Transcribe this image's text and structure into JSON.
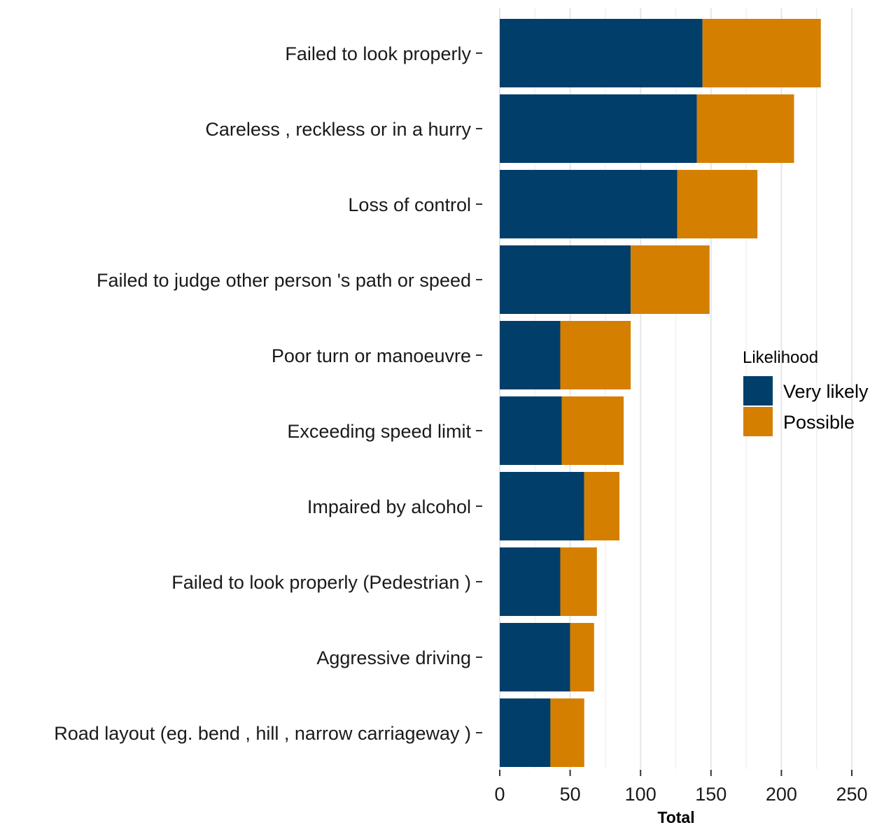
{
  "chart_data": {
    "type": "bar",
    "orientation": "horizontal",
    "stacked": true,
    "categories": [
      "Failed to look properly",
      "Careless , reckless or in a hurry",
      "Loss of control",
      "Failed to judge other person 's path or speed",
      "Poor turn or manoeuvre",
      "Exceeding speed limit",
      "Impaired by alcohol",
      "Failed to look properly (Pedestrian )",
      "Aggressive driving",
      "Road layout (eg. bend , hill , narrow carriageway )"
    ],
    "series": [
      {
        "name": "Very likely",
        "color": "#023e6a",
        "values": [
          144,
          140,
          126,
          93,
          43,
          44,
          60,
          43,
          50,
          36
        ]
      },
      {
        "name": "Possible",
        "color": "#d57f00",
        "values": [
          84,
          69,
          57,
          56,
          50,
          44,
          25,
          26,
          17,
          24
        ]
      }
    ],
    "xlabel": "Total",
    "ylabel": "",
    "xlim": [
      0,
      260
    ],
    "xticks": [
      0,
      50,
      100,
      150,
      200,
      250
    ],
    "grid": "vertical major and minor, light gray",
    "legend": {
      "title": "Likelihood",
      "position": "right",
      "entries": [
        "Very likely",
        "Possible"
      ]
    }
  }
}
